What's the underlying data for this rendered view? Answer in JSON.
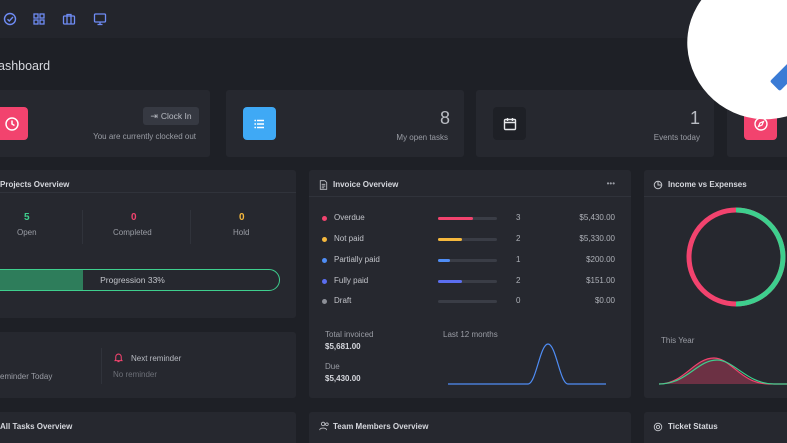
{
  "header": {
    "icons": [
      "check-circle-icon",
      "grid-icon",
      "briefcase-icon",
      "monitor-icon"
    ]
  },
  "page_title": "ashboard",
  "cards": {
    "clock": {
      "button_label": "Clock In",
      "status": "You are currently clocked out",
      "color": "#f2436e"
    },
    "tasks": {
      "count": "8",
      "label": "My open tasks",
      "color": "#3fa9f5"
    },
    "events": {
      "count": "1",
      "label": "Events today"
    },
    "partial": {
      "color": "#f2436e"
    }
  },
  "projects": {
    "title": "Projects Overview",
    "stats": [
      {
        "value": "5",
        "label": "Open",
        "color": "#3ecf8e"
      },
      {
        "value": "0",
        "label": "Completed",
        "color": "#f2436e"
      },
      {
        "value": "0",
        "label": "Hold",
        "color": "#f5b83d"
      }
    ],
    "progress_label": "Progression 33%",
    "progress": 0.33
  },
  "reminders": {
    "today_label": "eminder Today",
    "next_title": "Next reminder",
    "next_value": "No reminder"
  },
  "invoice": {
    "title": "Invoice Overview",
    "more": "•••",
    "rows": [
      {
        "label": "Overdue",
        "count": "3",
        "amount": "$5,430.00",
        "color": "#f2436e",
        "fill": 0.6
      },
      {
        "label": "Not paid",
        "count": "2",
        "amount": "$5,330.00",
        "color": "#f5b83d",
        "fill": 0.4
      },
      {
        "label": "Partially paid",
        "count": "1",
        "amount": "$200.00",
        "color": "#4f8df5",
        "fill": 0.2
      },
      {
        "label": "Fully paid",
        "count": "2",
        "amount": "$151.00",
        "color": "#5b6ef0",
        "fill": 0.4
      },
      {
        "label": "Draft",
        "count": "0",
        "amount": "$0.00",
        "color": "#8c8f97",
        "fill": 0
      }
    ],
    "total_label": "Total invoiced",
    "total_value": "$5,681.00",
    "due_label": "Due",
    "due_value": "$5,430.00",
    "chart_label": "Last 12 months",
    "line_color": "#4f8df5"
  },
  "income": {
    "title": "Income vs Expenses",
    "year_label": "This Year",
    "income_color": "#3ecf8e",
    "expense_color": "#f2436e"
  },
  "bottom": {
    "tasks_title": "All Tasks Overview",
    "team_title": "Team Members Overview",
    "ticket_title": "Ticket Status"
  }
}
